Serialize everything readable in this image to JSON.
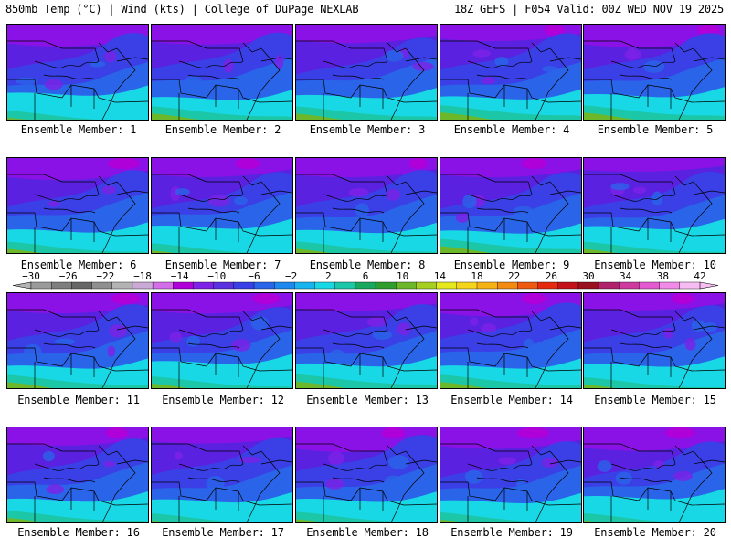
{
  "header": {
    "left": "850mb Temp (°C) | Wind (kts) | College of DuPage NEXLAB",
    "right": "18Z GEFS | F054 Valid: 00Z WED NOV 19 2025"
  },
  "members": [
    "Ensemble Member: 1",
    "Ensemble Member: 2",
    "Ensemble Member: 3",
    "Ensemble Member: 4",
    "Ensemble Member: 5",
    "Ensemble Member: 6",
    "Ensemble Member: 7",
    "Ensemble Member: 8",
    "Ensemble Member: 9",
    "Ensemble Member: 10",
    "Ensemble Member: 11",
    "Ensemble Member: 12",
    "Ensemble Member: 13",
    "Ensemble Member: 14",
    "Ensemble Member: 15",
    "Ensemble Member: 16",
    "Ensemble Member: 17",
    "Ensemble Member: 18",
    "Ensemble Member: 19",
    "Ensemble Member: 20"
  ],
  "colorbar": {
    "labels": [
      "-30",
      "-26",
      "-22",
      "-18",
      "-14",
      "-10",
      "-6",
      "-2",
      "2",
      "6",
      "10",
      "14",
      "18",
      "22",
      "26",
      "30",
      "34",
      "38",
      "42"
    ],
    "colors": [
      "#9a9a9a",
      "#7e7e7e",
      "#666666",
      "#8f8f8f",
      "#b3b3b3",
      "#c9a9d6",
      "#d36ee8",
      "#b000d9",
      "#7d22e6",
      "#5a31e0",
      "#3a3fe6",
      "#2a64e8",
      "#1e88ee",
      "#18b4f0",
      "#19d8e6",
      "#1cc7a8",
      "#19a85e",
      "#2f9e2f",
      "#6cb82a",
      "#a6cf22",
      "#e6e81e",
      "#f5d51b",
      "#f6b114",
      "#f38a12",
      "#ee5b10",
      "#e52a10",
      "#c4121a",
      "#99101f",
      "#b0226c",
      "#cf3a9f",
      "#e45bd1",
      "#f08ce8",
      "#f7bdf2"
    ]
  }
}
